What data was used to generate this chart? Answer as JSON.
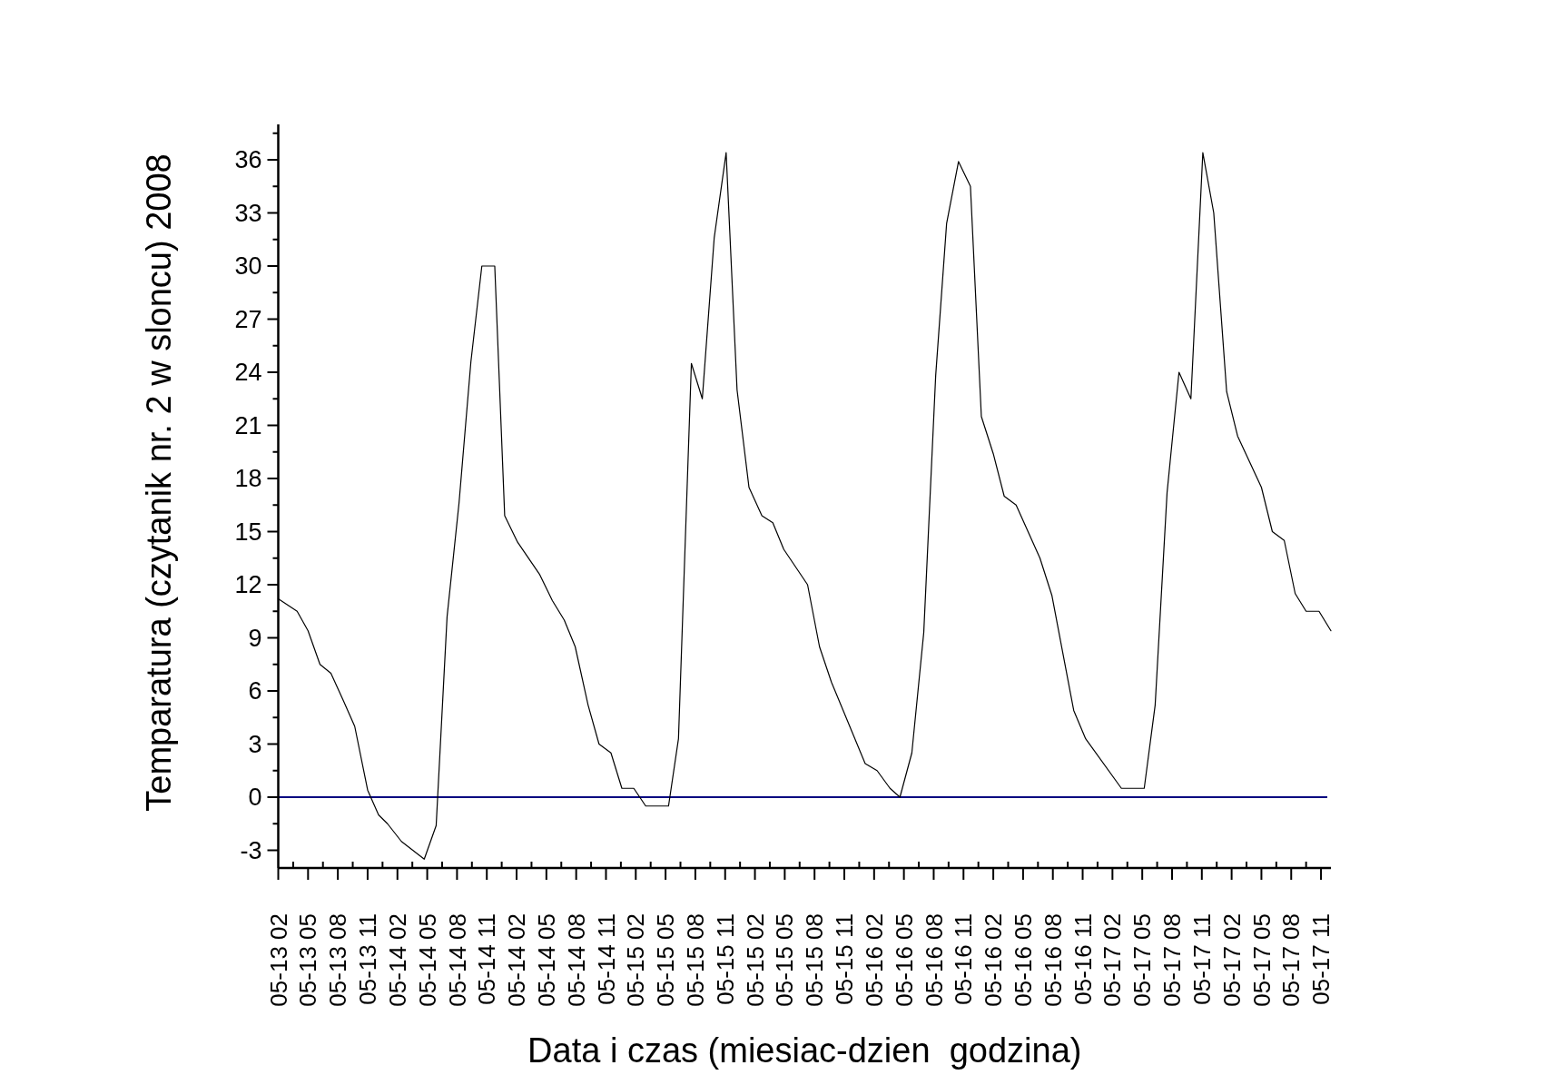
{
  "chart_data": {
    "type": "line",
    "xlabel": "Data i czas (miesiac-dzien  godzina)",
    "ylabel": "Temparatura (czytanik nr. 2 w sloncu) 2008",
    "x": [
      "2008-05-13T14:00",
      "2008-05-13T15:54",
      "2008-05-13T17:00",
      "2008-05-13T18:12",
      "2008-05-13T19:18",
      "2008-05-13T20:36",
      "2008-05-13T21:42",
      "2008-05-13T23:00",
      "2008-05-14T00:06",
      "2008-05-14T01:00",
      "2008-05-14T02:24",
      "2008-05-14T04:42",
      "2008-05-14T05:54",
      "2008-05-14T07:00",
      "2008-05-14T08:12",
      "2008-05-14T09:24",
      "2008-05-14T10:30",
      "2008-05-14T11:48",
      "2008-05-14T12:48",
      "2008-05-14T14:06",
      "2008-05-14T16:18",
      "2008-05-14T17:36",
      "2008-05-14T18:48",
      "2008-05-14T19:54",
      "2008-05-14T21:12",
      "2008-05-14T22:18",
      "2008-05-14T23:30",
      "2008-05-15T00:36",
      "2008-05-15T01:48",
      "2008-05-15T03:00",
      "2008-05-15T05:18",
      "2008-05-15T06:18",
      "2008-05-15T07:36",
      "2008-05-15T08:42",
      "2008-05-15T09:54",
      "2008-05-15T11:06",
      "2008-05-15T12:12",
      "2008-05-15T13:24",
      "2008-05-15T14:42",
      "2008-05-15T15:48",
      "2008-05-15T16:54",
      "2008-05-15T19:18",
      "2008-05-15T20:30",
      "2008-05-15T21:42",
      "2008-05-16T01:06",
      "2008-05-16T02:18",
      "2008-05-16T03:36",
      "2008-05-16T04:36",
      "2008-05-16T05:48",
      "2008-05-16T07:00",
      "2008-05-16T08:12",
      "2008-05-16T09:18",
      "2008-05-16T10:30",
      "2008-05-16T11:42",
      "2008-05-16T12:48",
      "2008-05-16T14:00",
      "2008-05-16T15:06",
      "2008-05-16T16:18",
      "2008-05-16T18:42",
      "2008-05-16T19:54",
      "2008-05-16T22:06",
      "2008-05-16T23:18",
      "2008-05-17T02:54",
      "2008-05-17T05:12",
      "2008-05-17T06:18",
      "2008-05-17T07:30",
      "2008-05-17T08:42",
      "2008-05-17T09:54",
      "2008-05-17T11:06",
      "2008-05-17T12:12",
      "2008-05-17T13:30",
      "2008-05-17T14:36",
      "2008-05-17T17:00",
      "2008-05-17T18:06",
      "2008-05-17T19:18",
      "2008-05-17T20:24",
      "2008-05-17T21:30",
      "2008-05-17T22:48",
      "2008-05-18T00:00"
    ],
    "series": [
      {
        "color": "#000000",
        "values": [
          11.2,
          10.5,
          9.4,
          7.5,
          7.0,
          5.4,
          4.0,
          0.4,
          -1.0,
          -1.5,
          -2.5,
          -3.5,
          -1.6,
          10.2,
          16.6,
          24.6,
          30.0,
          30.0,
          15.9,
          14.4,
          12.6,
          11.1,
          10.0,
          8.5,
          5.2,
          3.0,
          2.5,
          0.5,
          0.5,
          -0.5,
          -0.5,
          3.3,
          24.5,
          22.5,
          31.6,
          36.4,
          23.0,
          17.5,
          15.9,
          15.5,
          14.0,
          12.0,
          8.5,
          6.5,
          1.9,
          1.5,
          0.5,
          0.0,
          2.5,
          9.3,
          23.8,
          32.4,
          35.9,
          34.5,
          21.5,
          19.4,
          17.0,
          16.5,
          13.5,
          11.4,
          4.9,
          3.3,
          0.5,
          0.5,
          5.2,
          17.2,
          24.0,
          22.5,
          36.4,
          33.0,
          22.9,
          20.4,
          17.5,
          15.0,
          14.5,
          11.5,
          10.5,
          10.5,
          9.4
        ]
      }
    ],
    "xlim": [
      "2008-05-13T14:00",
      "2008-05-18T00:00"
    ],
    "xticks": [
      {
        "value": "2008-05-13T14:00",
        "label": "05-13 02"
      },
      {
        "value": "2008-05-13T15:30",
        "label": null
      },
      {
        "value": "2008-05-13T17:00",
        "label": "05-13 05"
      },
      {
        "value": "2008-05-13T18:30",
        "label": null
      },
      {
        "value": "2008-05-13T20:00",
        "label": "05-13 08"
      },
      {
        "value": "2008-05-13T21:30",
        "label": null
      },
      {
        "value": "2008-05-13T23:00",
        "label": "05-13 11"
      },
      {
        "value": "2008-05-14T00:30",
        "label": null
      },
      {
        "value": "2008-05-14T02:00",
        "label": "05-14 02"
      },
      {
        "value": "2008-05-14T03:30",
        "label": null
      },
      {
        "value": "2008-05-14T05:00",
        "label": "05-14 05"
      },
      {
        "value": "2008-05-14T06:30",
        "label": null
      },
      {
        "value": "2008-05-14T08:00",
        "label": "05-14 08"
      },
      {
        "value": "2008-05-14T09:30",
        "label": null
      },
      {
        "value": "2008-05-14T11:00",
        "label": "05-14 11"
      },
      {
        "value": "2008-05-14T12:30",
        "label": null
      },
      {
        "value": "2008-05-14T14:00",
        "label": "05-14 02"
      },
      {
        "value": "2008-05-14T15:30",
        "label": null
      },
      {
        "value": "2008-05-14T17:00",
        "label": "05-14 05"
      },
      {
        "value": "2008-05-14T18:30",
        "label": null
      },
      {
        "value": "2008-05-14T20:00",
        "label": "05-14 08"
      },
      {
        "value": "2008-05-14T21:30",
        "label": null
      },
      {
        "value": "2008-05-14T23:00",
        "label": "05-14 11"
      },
      {
        "value": "2008-05-15T00:30",
        "label": null
      },
      {
        "value": "2008-05-15T02:00",
        "label": "05-15 02"
      },
      {
        "value": "2008-05-15T03:30",
        "label": null
      },
      {
        "value": "2008-05-15T05:00",
        "label": "05-15 05"
      },
      {
        "value": "2008-05-15T06:30",
        "label": null
      },
      {
        "value": "2008-05-15T08:00",
        "label": "05-15 08"
      },
      {
        "value": "2008-05-15T09:30",
        "label": null
      },
      {
        "value": "2008-05-15T11:00",
        "label": "05-15 11"
      },
      {
        "value": "2008-05-15T12:30",
        "label": null
      },
      {
        "value": "2008-05-15T14:00",
        "label": "05-15 02"
      },
      {
        "value": "2008-05-15T15:30",
        "label": null
      },
      {
        "value": "2008-05-15T17:00",
        "label": "05-15 05"
      },
      {
        "value": "2008-05-15T18:30",
        "label": null
      },
      {
        "value": "2008-05-15T20:00",
        "label": "05-15 08"
      },
      {
        "value": "2008-05-15T21:30",
        "label": null
      },
      {
        "value": "2008-05-15T23:00",
        "label": "05-15 11"
      },
      {
        "value": "2008-05-16T00:30",
        "label": null
      },
      {
        "value": "2008-05-16T02:00",
        "label": "05-16 02"
      },
      {
        "value": "2008-05-16T03:30",
        "label": null
      },
      {
        "value": "2008-05-16T05:00",
        "label": "05-16 05"
      },
      {
        "value": "2008-05-16T06:30",
        "label": null
      },
      {
        "value": "2008-05-16T08:00",
        "label": "05-16 08"
      },
      {
        "value": "2008-05-16T09:30",
        "label": null
      },
      {
        "value": "2008-05-16T11:00",
        "label": "05-16 11"
      },
      {
        "value": "2008-05-16T12:30",
        "label": null
      },
      {
        "value": "2008-05-16T14:00",
        "label": "05-16 02"
      },
      {
        "value": "2008-05-16T15:30",
        "label": null
      },
      {
        "value": "2008-05-16T17:00",
        "label": "05-16 05"
      },
      {
        "value": "2008-05-16T18:30",
        "label": null
      },
      {
        "value": "2008-05-16T20:00",
        "label": "05-16 08"
      },
      {
        "value": "2008-05-16T21:30",
        "label": null
      },
      {
        "value": "2008-05-16T23:00",
        "label": "05-16 11"
      },
      {
        "value": "2008-05-17T00:30",
        "label": null
      },
      {
        "value": "2008-05-17T02:00",
        "label": "05-17 02"
      },
      {
        "value": "2008-05-17T03:30",
        "label": null
      },
      {
        "value": "2008-05-17T05:00",
        "label": "05-17 05"
      },
      {
        "value": "2008-05-17T06:30",
        "label": null
      },
      {
        "value": "2008-05-17T08:00",
        "label": "05-17 08"
      },
      {
        "value": "2008-05-17T09:30",
        "label": null
      },
      {
        "value": "2008-05-17T11:00",
        "label": "05-17 11"
      },
      {
        "value": "2008-05-17T12:30",
        "label": null
      },
      {
        "value": "2008-05-17T14:00",
        "label": "05-17 02"
      },
      {
        "value": "2008-05-17T15:30",
        "label": null
      },
      {
        "value": "2008-05-17T17:00",
        "label": "05-17 05"
      },
      {
        "value": "2008-05-17T18:30",
        "label": null
      },
      {
        "value": "2008-05-17T20:00",
        "label": "05-17 08"
      },
      {
        "value": "2008-05-17T21:30",
        "label": null
      },
      {
        "value": "2008-05-17T23:00",
        "label": "05-17 11"
      }
    ],
    "ylim": [
      -4,
      38
    ],
    "yticks": [
      -3,
      {
        "value": -1.5,
        "label": null
      },
      0,
      {
        "value": 1.5,
        "label": null
      },
      3,
      {
        "value": 4.5,
        "label": null
      },
      6,
      {
        "value": 7.5,
        "label": null
      },
      9,
      {
        "value": 10.5,
        "label": null
      },
      12,
      {
        "value": 13.5,
        "label": null
      },
      15,
      {
        "value": 16.5,
        "label": null
      },
      18,
      {
        "value": 19.5,
        "label": null
      },
      21,
      {
        "value": 22.5,
        "label": null
      },
      24,
      {
        "value": 25.5,
        "label": null
      },
      27,
      {
        "value": 28.5,
        "label": null
      },
      30,
      {
        "value": 31.5,
        "label": null
      },
      33,
      {
        "value": 34.5,
        "label": null
      },
      36,
      {
        "value": 37.5,
        "label": null
      }
    ],
    "ref_lines": [
      {
        "axis": "y",
        "value": 0,
        "color": "#000080"
      }
    ],
    "grid": false,
    "marker": "none",
    "line_style": "solid"
  }
}
